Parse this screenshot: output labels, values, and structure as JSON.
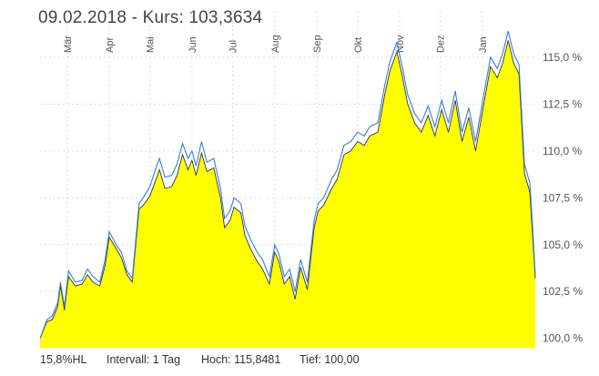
{
  "header": {
    "title": "09.02.2018  -  Kurs: 103,3634"
  },
  "footer": {
    "range": "15,8%HL",
    "interval": "Intervall: 1 Tag",
    "high": "Hoch: 115,8481",
    "low": "Tief:  100,00"
  },
  "colors": {
    "area_fill": "#ffff00",
    "line_upper": "#3a7fd0",
    "line_lower": "#333344",
    "grid": "#dddddd"
  },
  "chart_data": {
    "type": "area",
    "title": "",
    "xlabel": "",
    "ylabel": "",
    "x_range": [
      "2017-02-09",
      "2018-02-09"
    ],
    "ylim": [
      99.5,
      116.5
    ],
    "grid": true,
    "y_ticks": [
      {
        "value": 100.0,
        "label": "100,0 %"
      },
      {
        "value": 102.5,
        "label": "102,5 %"
      },
      {
        "value": 105.0,
        "label": "105,0 %"
      },
      {
        "value": 107.5,
        "label": "107,5 %"
      },
      {
        "value": 110.0,
        "label": "110,0 %"
      },
      {
        "value": 112.5,
        "label": "112,5 %"
      },
      {
        "value": 115.0,
        "label": "115,0 %"
      }
    ],
    "x_ticks": [
      {
        "date": "2017-03-01",
        "label": "Mär"
      },
      {
        "date": "2017-04-01",
        "label": "Apr"
      },
      {
        "date": "2017-05-01",
        "label": "Mai"
      },
      {
        "date": "2017-06-01",
        "label": "Jun"
      },
      {
        "date": "2017-07-01",
        "label": "Jul"
      },
      {
        "date": "2017-08-01",
        "label": "Aug"
      },
      {
        "date": "2017-09-01",
        "label": "Sep"
      },
      {
        "date": "2017-10-01",
        "label": "Okt"
      },
      {
        "date": "2017-11-01",
        "label": "Nov"
      },
      {
        "date": "2017-12-01",
        "label": "Dez"
      },
      {
        "date": "2018-01-01",
        "label": "Jan"
      }
    ],
    "series": [
      {
        "role": "high",
        "points": [
          [
            "2017-02-09",
            100.0
          ],
          [
            "2017-02-14",
            101.0
          ],
          [
            "2017-02-18",
            101.2
          ],
          [
            "2017-02-22",
            101.9
          ],
          [
            "2017-02-24",
            103.0
          ],
          [
            "2017-02-27",
            101.7
          ],
          [
            "2017-03-02",
            103.6
          ],
          [
            "2017-03-07",
            103.0
          ],
          [
            "2017-03-12",
            103.1
          ],
          [
            "2017-03-16",
            103.7
          ],
          [
            "2017-03-20",
            103.3
          ],
          [
            "2017-03-25",
            103.0
          ],
          [
            "2017-03-29",
            104.2
          ],
          [
            "2017-04-01",
            105.7
          ],
          [
            "2017-04-06",
            105.0
          ],
          [
            "2017-04-10",
            104.6
          ],
          [
            "2017-04-14",
            103.6
          ],
          [
            "2017-04-18",
            103.2
          ],
          [
            "2017-04-23",
            107.2
          ],
          [
            "2017-04-26",
            107.5
          ],
          [
            "2017-05-01",
            108.1
          ],
          [
            "2017-05-05",
            109.0
          ],
          [
            "2017-05-08",
            109.6
          ],
          [
            "2017-05-12",
            108.6
          ],
          [
            "2017-05-17",
            108.7
          ],
          [
            "2017-05-21",
            109.3
          ],
          [
            "2017-05-25",
            110.4
          ],
          [
            "2017-05-29",
            109.6
          ],
          [
            "2017-06-01",
            110.0
          ],
          [
            "2017-06-04",
            109.2
          ],
          [
            "2017-06-08",
            110.5
          ],
          [
            "2017-06-12",
            109.4
          ],
          [
            "2017-06-17",
            109.6
          ],
          [
            "2017-06-22",
            108.0
          ],
          [
            "2017-06-25",
            106.4
          ],
          [
            "2017-06-29",
            106.8
          ],
          [
            "2017-07-02",
            107.5
          ],
          [
            "2017-07-07",
            107.2
          ],
          [
            "2017-07-10",
            106.0
          ],
          [
            "2017-07-14",
            105.3
          ],
          [
            "2017-07-19",
            104.6
          ],
          [
            "2017-07-23",
            104.2
          ],
          [
            "2017-07-28",
            103.3
          ],
          [
            "2017-08-01",
            105.0
          ],
          [
            "2017-08-04",
            104.5
          ],
          [
            "2017-08-08",
            103.3
          ],
          [
            "2017-08-12",
            103.7
          ],
          [
            "2017-08-16",
            102.5
          ],
          [
            "2017-08-20",
            104.2
          ],
          [
            "2017-08-25",
            103.0
          ],
          [
            "2017-08-30",
            106.3
          ],
          [
            "2017-09-02",
            107.2
          ],
          [
            "2017-09-06",
            107.5
          ],
          [
            "2017-09-12",
            108.5
          ],
          [
            "2017-09-16",
            109.0
          ],
          [
            "2017-09-21",
            110.3
          ],
          [
            "2017-09-26",
            110.5
          ],
          [
            "2017-10-01",
            111.0
          ],
          [
            "2017-10-06",
            110.8
          ],
          [
            "2017-10-10",
            111.3
          ],
          [
            "2017-10-16",
            111.5
          ],
          [
            "2017-10-21",
            113.5
          ],
          [
            "2017-10-25",
            114.8
          ],
          [
            "2017-10-30",
            115.8
          ],
          [
            "2017-11-03",
            114.5
          ],
          [
            "2017-11-07",
            113.0
          ],
          [
            "2017-11-12",
            112.0
          ],
          [
            "2017-11-17",
            111.5
          ],
          [
            "2017-11-22",
            112.4
          ],
          [
            "2017-11-27",
            111.3
          ],
          [
            "2017-12-02",
            112.7
          ],
          [
            "2017-12-07",
            111.5
          ],
          [
            "2017-12-12",
            113.2
          ],
          [
            "2017-12-17",
            111.0
          ],
          [
            "2017-12-22",
            112.3
          ],
          [
            "2017-12-27",
            110.5
          ],
          [
            "2018-01-02",
            113.0
          ],
          [
            "2018-01-07",
            115.0
          ],
          [
            "2018-01-12",
            114.4
          ],
          [
            "2018-01-16",
            115.2
          ],
          [
            "2018-01-20",
            116.4
          ],
          [
            "2018-01-24",
            115.2
          ],
          [
            "2018-01-28",
            114.6
          ],
          [
            "2018-02-01",
            109.3
          ],
          [
            "2018-02-05",
            108.3
          ],
          [
            "2018-02-07",
            106.0
          ],
          [
            "2018-02-09",
            103.4
          ]
        ]
      },
      {
        "role": "low",
        "points": [
          [
            "2017-02-09",
            100.0
          ],
          [
            "2017-02-14",
            100.9
          ],
          [
            "2017-02-18",
            101.0
          ],
          [
            "2017-02-22",
            101.7
          ],
          [
            "2017-02-24",
            102.8
          ],
          [
            "2017-02-27",
            101.5
          ],
          [
            "2017-03-02",
            103.3
          ],
          [
            "2017-03-07",
            102.8
          ],
          [
            "2017-03-12",
            102.9
          ],
          [
            "2017-03-16",
            103.4
          ],
          [
            "2017-03-20",
            103.0
          ],
          [
            "2017-03-25",
            102.8
          ],
          [
            "2017-03-29",
            103.9
          ],
          [
            "2017-04-01",
            105.4
          ],
          [
            "2017-04-06",
            104.8
          ],
          [
            "2017-04-10",
            104.3
          ],
          [
            "2017-04-14",
            103.4
          ],
          [
            "2017-04-18",
            103.0
          ],
          [
            "2017-04-23",
            106.9
          ],
          [
            "2017-04-26",
            107.1
          ],
          [
            "2017-05-01",
            107.6
          ],
          [
            "2017-05-05",
            108.4
          ],
          [
            "2017-05-08",
            109.0
          ],
          [
            "2017-05-12",
            108.0
          ],
          [
            "2017-05-17",
            108.1
          ],
          [
            "2017-05-21",
            108.7
          ],
          [
            "2017-05-25",
            109.8
          ],
          [
            "2017-05-29",
            109.0
          ],
          [
            "2017-06-01",
            109.5
          ],
          [
            "2017-06-04",
            108.7
          ],
          [
            "2017-06-08",
            109.9
          ],
          [
            "2017-06-12",
            108.9
          ],
          [
            "2017-06-17",
            109.1
          ],
          [
            "2017-06-22",
            107.5
          ],
          [
            "2017-06-25",
            105.9
          ],
          [
            "2017-06-29",
            106.3
          ],
          [
            "2017-07-02",
            107.0
          ],
          [
            "2017-07-07",
            106.7
          ],
          [
            "2017-07-10",
            105.5
          ],
          [
            "2017-07-14",
            104.8
          ],
          [
            "2017-07-19",
            104.1
          ],
          [
            "2017-07-23",
            103.7
          ],
          [
            "2017-07-28",
            102.9
          ],
          [
            "2017-08-01",
            104.6
          ],
          [
            "2017-08-04",
            104.1
          ],
          [
            "2017-08-08",
            102.9
          ],
          [
            "2017-08-12",
            103.3
          ],
          [
            "2017-08-16",
            102.1
          ],
          [
            "2017-08-20",
            103.8
          ],
          [
            "2017-08-25",
            102.6
          ],
          [
            "2017-08-30",
            105.9
          ],
          [
            "2017-09-02",
            106.8
          ],
          [
            "2017-09-06",
            107.1
          ],
          [
            "2017-09-12",
            108.0
          ],
          [
            "2017-09-16",
            108.5
          ],
          [
            "2017-09-21",
            109.8
          ],
          [
            "2017-09-26",
            110.0
          ],
          [
            "2017-10-01",
            110.5
          ],
          [
            "2017-10-06",
            110.3
          ],
          [
            "2017-10-10",
            110.8
          ],
          [
            "2017-10-16",
            111.0
          ],
          [
            "2017-10-21",
            113.0
          ],
          [
            "2017-10-25",
            114.3
          ],
          [
            "2017-10-30",
            115.3
          ],
          [
            "2017-11-03",
            114.0
          ],
          [
            "2017-11-07",
            112.5
          ],
          [
            "2017-11-12",
            111.5
          ],
          [
            "2017-11-17",
            111.0
          ],
          [
            "2017-11-22",
            111.9
          ],
          [
            "2017-11-27",
            110.8
          ],
          [
            "2017-12-02",
            112.2
          ],
          [
            "2017-12-07",
            111.0
          ],
          [
            "2017-12-12",
            112.7
          ],
          [
            "2017-12-17",
            110.5
          ],
          [
            "2017-12-22",
            111.8
          ],
          [
            "2017-12-27",
            110.0
          ],
          [
            "2018-01-02",
            112.5
          ],
          [
            "2018-01-07",
            114.5
          ],
          [
            "2018-01-12",
            113.9
          ],
          [
            "2018-01-16",
            114.7
          ],
          [
            "2018-01-20",
            115.9
          ],
          [
            "2018-01-24",
            114.7
          ],
          [
            "2018-01-28",
            114.1
          ],
          [
            "2018-02-01",
            108.8
          ],
          [
            "2018-02-05",
            107.8
          ],
          [
            "2018-02-07",
            105.5
          ],
          [
            "2018-02-09",
            103.2
          ]
        ]
      }
    ]
  }
}
